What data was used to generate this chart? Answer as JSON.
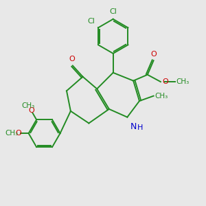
{
  "bg_color": "#e8e8e8",
  "bond_color": "#228B22",
  "o_color": "#CC0000",
  "n_color": "#0000CD",
  "lw": 1.4,
  "fig_w": 3.0,
  "fig_h": 3.0,
  "dpi": 100,
  "xlim": [
    0,
    10
  ],
  "ylim": [
    0,
    10
  ]
}
